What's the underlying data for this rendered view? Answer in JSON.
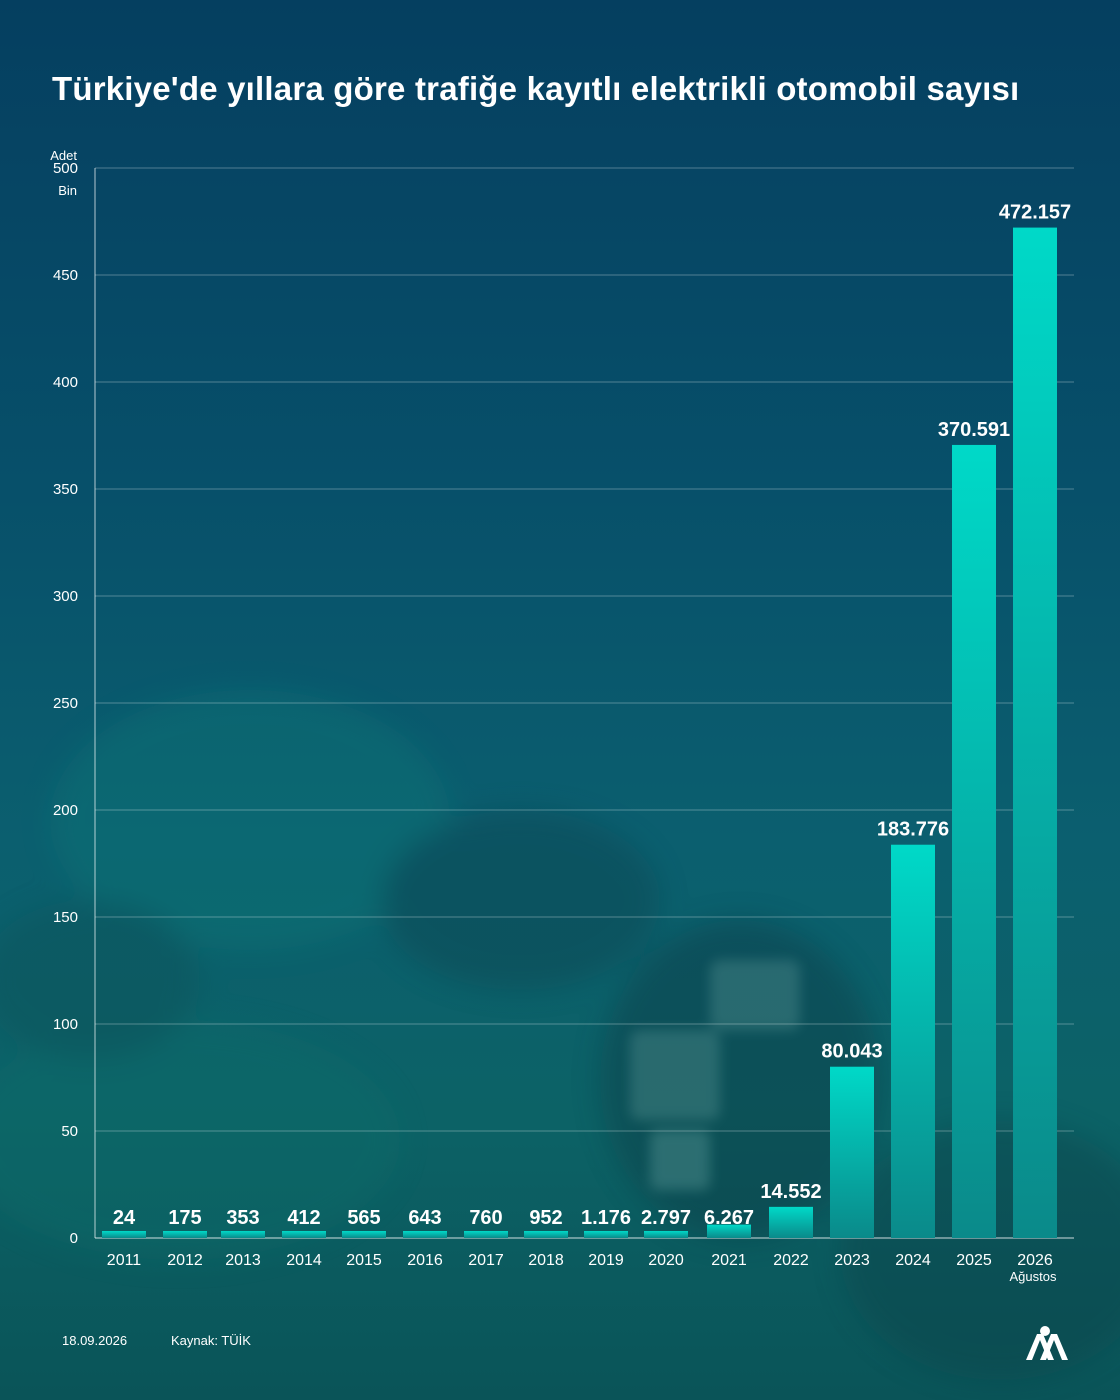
{
  "title": "Türkiye'de yıllara göre trafiğe kayıtlı elektrikli otomobil sayısı",
  "footer": {
    "date": "18.09.2026",
    "source": "Kaynak: TÜİK"
  },
  "logo_text": "AA",
  "colors": {
    "bar_top": "#00d9c8",
    "bar_bottom": "#0a8a8a",
    "grid": "#ffffff"
  },
  "chart_data": {
    "type": "bar",
    "title": "Türkiye'de yıllara göre trafiğe kayıtlı elektrikli otomobil sayısı",
    "y_unit_top": "Adet",
    "y_unit_bottom": "Bin",
    "ylim": [
      0,
      500
    ],
    "yticks": [
      0,
      50,
      100,
      150,
      200,
      250,
      300,
      350,
      400,
      450,
      500
    ],
    "grid": true,
    "categories": [
      "2011",
      "2012",
      "2013",
      "2014",
      "2015",
      "2016",
      "2017",
      "2018",
      "2019",
      "2020",
      "2021",
      "2022",
      "2023",
      "2024",
      "2025",
      "2026"
    ],
    "category_sublabels": [
      "",
      "",
      "",
      "",
      "",
      "",
      "",
      "",
      "",
      "",
      "",
      "",
      "",
      "",
      "",
      "Ağustos"
    ],
    "values": [
      24,
      175,
      353,
      412,
      565,
      643,
      760,
      952,
      1176,
      2797,
      6267,
      14552,
      80043,
      183776,
      370591,
      472157
    ],
    "value_labels": [
      "24",
      "175",
      "353",
      "412",
      "565",
      "643",
      "760",
      "952",
      "1.176",
      "2.797",
      "6.267",
      "14.552",
      "80.043",
      "183.776",
      "370.591",
      "472.157"
    ]
  }
}
